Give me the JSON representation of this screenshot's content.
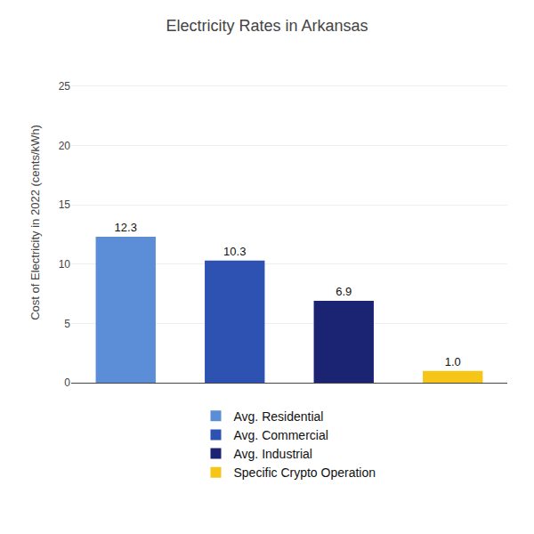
{
  "chart_data": {
    "type": "bar",
    "title": "Electricity Rates in Arkansas",
    "ylabel": "Cost of Electricity in 2022 (cents/kWh)",
    "categories": [
      "Avg. Residential",
      "Avg. Commercial",
      "Avg. Industrial",
      "Specific Crypto Operation"
    ],
    "values": [
      12.3,
      10.3,
      6.9,
      1.0
    ],
    "value_labels": [
      "12.3",
      "10.3",
      "6.9",
      "1.0"
    ],
    "colors": [
      "#5b8ed6",
      "#2e52b2",
      "#1a2472",
      "#f5c518"
    ],
    "ylim": [
      0,
      27
    ],
    "yticks": [
      0,
      5,
      10,
      15,
      20,
      25
    ],
    "grid": true,
    "data_labels": true,
    "tick_labels": "y",
    "legend": "bottom"
  }
}
